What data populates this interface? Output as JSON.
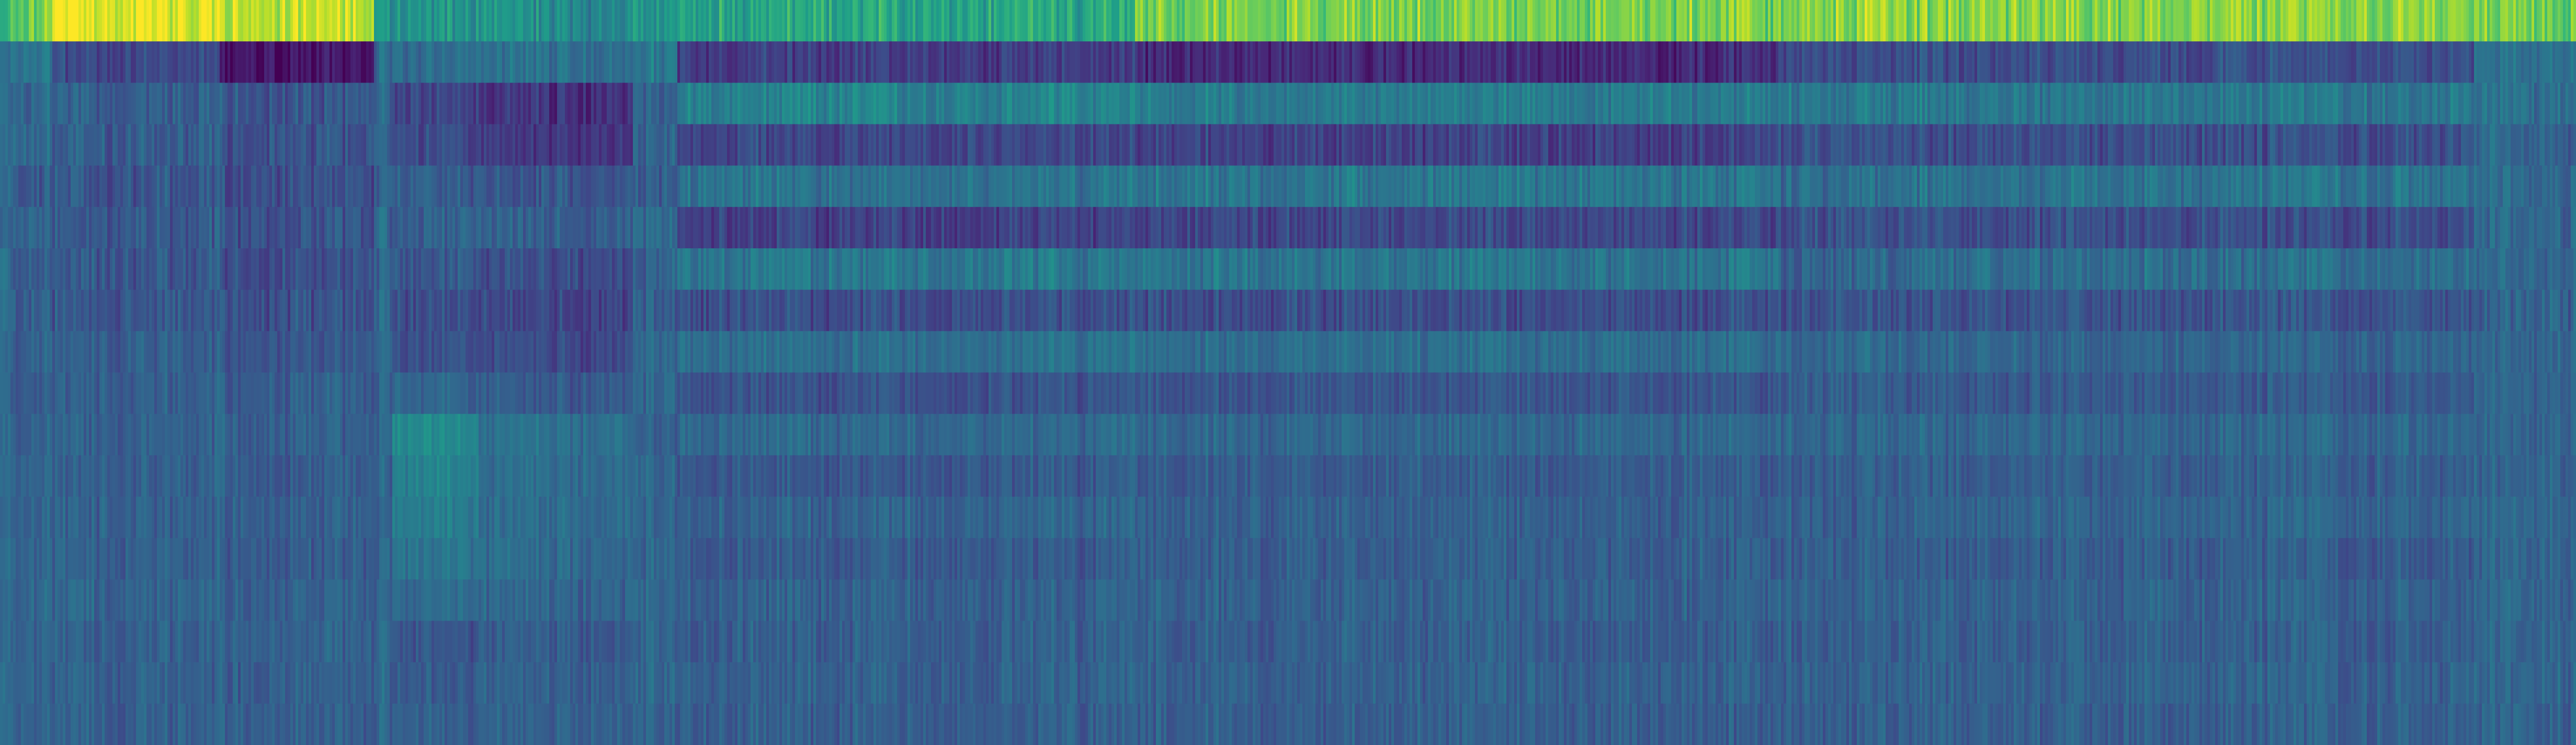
{
  "chart_data": {
    "type": "heatmap",
    "title": "",
    "xlabel": "",
    "ylabel": "",
    "rows": 18,
    "colormap": "viridis",
    "colormap_stops": [
      "#440154",
      "#482878",
      "#3e4989",
      "#31688e",
      "#26828e",
      "#1f9e89",
      "#35b779",
      "#6ece58",
      "#b5de2b",
      "#fde725"
    ],
    "value_range": [
      0,
      1
    ],
    "colorbar": false,
    "grid": false,
    "legend": "none",
    "row_base_levels": [
      0.74,
      0.24,
      0.3,
      0.28,
      0.33,
      0.25,
      0.34,
      0.29,
      0.31,
      0.29,
      0.31,
      0.31,
      0.32,
      0.31,
      0.33,
      0.31,
      0.32,
      0.31
    ],
    "column_segments": [
      {
        "from": 0.0,
        "to": 0.004,
        "levels": [
          0.62,
          0.34,
          0.31,
          0.32,
          0.32,
          0.32,
          0.33,
          0.32,
          0.32,
          0.32,
          0.32,
          0.32,
          0.32,
          0.32,
          0.32,
          0.32,
          0.32,
          0.32
        ]
      },
      {
        "from": 0.004,
        "to": 0.02,
        "levels": [
          0.78,
          0.4,
          0.33,
          0.35,
          0.29,
          0.33,
          0.3,
          0.3,
          0.32,
          0.31,
          0.32,
          0.32,
          0.32,
          0.32,
          0.33,
          0.32,
          0.32,
          0.32
        ]
      },
      {
        "from": 0.02,
        "to": 0.085,
        "levels": [
          0.97,
          0.22,
          0.3,
          0.29,
          0.27,
          0.28,
          0.28,
          0.27,
          0.3,
          0.3,
          0.31,
          0.3,
          0.31,
          0.31,
          0.32,
          0.31,
          0.31,
          0.31
        ]
      },
      {
        "from": 0.085,
        "to": 0.145,
        "levels": [
          0.9,
          0.06,
          0.27,
          0.26,
          0.24,
          0.25,
          0.24,
          0.25,
          0.27,
          0.3,
          0.3,
          0.29,
          0.3,
          0.29,
          0.3,
          0.31,
          0.3,
          0.3
        ]
      },
      {
        "from": 0.145,
        "to": 0.152,
        "levels": [
          0.55,
          0.34,
          0.32,
          0.31,
          0.32,
          0.33,
          0.32,
          0.32,
          0.33,
          0.32,
          0.33,
          0.33,
          0.33,
          0.33,
          0.33,
          0.33,
          0.33,
          0.33
        ]
      },
      {
        "from": 0.152,
        "to": 0.185,
        "levels": [
          0.5,
          0.34,
          0.2,
          0.22,
          0.28,
          0.3,
          0.27,
          0.23,
          0.24,
          0.32,
          0.46,
          0.44,
          0.42,
          0.38,
          0.34,
          0.26,
          0.28,
          0.3
        ]
      },
      {
        "from": 0.185,
        "to": 0.245,
        "levels": [
          0.48,
          0.36,
          0.14,
          0.16,
          0.26,
          0.3,
          0.24,
          0.2,
          0.22,
          0.28,
          0.36,
          0.35,
          0.34,
          0.34,
          0.32,
          0.28,
          0.3,
          0.3
        ]
      },
      {
        "from": 0.245,
        "to": 0.262,
        "levels": [
          0.52,
          0.4,
          0.3,
          0.32,
          0.3,
          0.34,
          0.32,
          0.31,
          0.32,
          0.33,
          0.32,
          0.33,
          0.33,
          0.32,
          0.33,
          0.32,
          0.33,
          0.32
        ]
      },
      {
        "from": 0.262,
        "to": 0.44,
        "levels": [
          0.6,
          0.18,
          0.44,
          0.22,
          0.38,
          0.2,
          0.4,
          0.24,
          0.37,
          0.26,
          0.34,
          0.28,
          0.32,
          0.29,
          0.31,
          0.3,
          0.31,
          0.3
        ]
      },
      {
        "from": 0.44,
        "to": 0.69,
        "levels": [
          0.8,
          0.12,
          0.42,
          0.2,
          0.4,
          0.22,
          0.39,
          0.24,
          0.36,
          0.27,
          0.33,
          0.29,
          0.31,
          0.3,
          0.31,
          0.3,
          0.31,
          0.3
        ]
      },
      {
        "from": 0.69,
        "to": 0.74,
        "levels": [
          0.84,
          0.24,
          0.4,
          0.26,
          0.36,
          0.26,
          0.32,
          0.26,
          0.34,
          0.3,
          0.33,
          0.3,
          0.31,
          0.3,
          0.31,
          0.3,
          0.31,
          0.3
        ]
      },
      {
        "from": 0.74,
        "to": 0.96,
        "levels": [
          0.82,
          0.24,
          0.4,
          0.24,
          0.38,
          0.24,
          0.36,
          0.26,
          0.32,
          0.28,
          0.33,
          0.3,
          0.32,
          0.29,
          0.31,
          0.3,
          0.31,
          0.3
        ]
      },
      {
        "from": 0.96,
        "to": 1.0,
        "levels": [
          0.78,
          0.36,
          0.36,
          0.32,
          0.33,
          0.32,
          0.32,
          0.31,
          0.31,
          0.31,
          0.32,
          0.31,
          0.32,
          0.31,
          0.32,
          0.31,
          0.32,
          0.31
        ]
      }
    ]
  }
}
